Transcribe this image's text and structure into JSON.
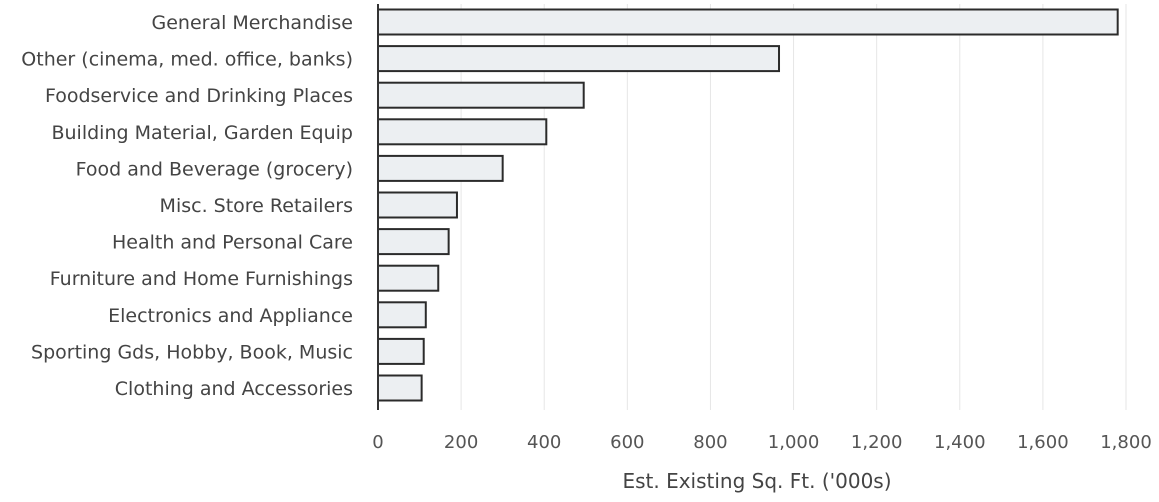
{
  "chart_data": {
    "type": "bar",
    "orientation": "horizontal",
    "categories": [
      "General Merchandise",
      "Other (cinema, med. office, banks)",
      "Foodservice and Drinking Places",
      "Building Material, Garden Equip",
      "Food and Beverage (grocery)",
      "Misc. Store Retailers",
      "Health and Personal Care",
      "Furniture and Home Furnishings",
      "Electronics and Appliance",
      "Sporting Gds, Hobby, Book, Music",
      "Clothing and Accessories"
    ],
    "values": [
      1780,
      965,
      495,
      405,
      300,
      190,
      170,
      145,
      115,
      110,
      105
    ],
    "xlabel": "Est. Existing Sq. Ft. ('000s)",
    "ylabel": "",
    "xlim": [
      0,
      1800
    ],
    "xticks": [
      0,
      200,
      400,
      600,
      800,
      1000,
      1200,
      1400,
      1600,
      1800
    ],
    "xtick_labels": [
      "0",
      "200",
      "400",
      "600",
      "800",
      "1,000",
      "1,200",
      "1,400",
      "1,600",
      "1,800"
    ],
    "grid": "vertical",
    "legend": "none",
    "colors": {
      "bar_fill": "#eceff2",
      "bar_stroke": "#2b2b2b",
      "grid": "#e6e6e6"
    }
  }
}
